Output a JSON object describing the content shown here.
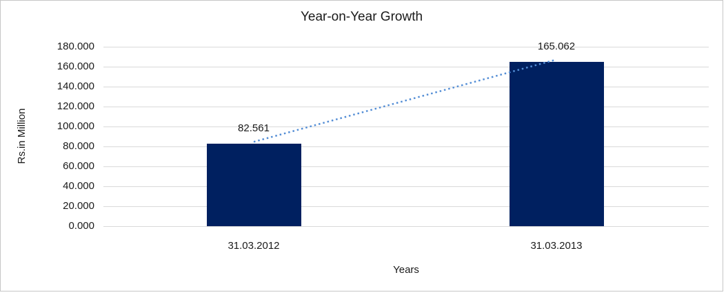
{
  "chart_data": {
    "type": "bar",
    "title": "Year-on-Year Growth",
    "categories": [
      "31.03.2012",
      "31.03.2013"
    ],
    "values": [
      82.561,
      165.062
    ],
    "data_labels": [
      "82.561",
      "165.062"
    ],
    "xlabel": "Years",
    "ylabel": "Rs.in Million",
    "ylim": [
      0,
      180
    ],
    "ytick_step": 20,
    "ytick_decimals": 3,
    "ytick_labels": [
      "0.000",
      "20.000",
      "40.000",
      "60.000",
      "80.000",
      "100.000",
      "120.000",
      "140.000",
      "160.000",
      "180.000"
    ],
    "grid": true,
    "legend": "none",
    "bar_color": "#002060",
    "trendline": {
      "style": "dotted",
      "color": "#538dd5",
      "connects": [
        "31.03.2012",
        "31.03.2013"
      ]
    },
    "gridline_color": "#d9d9d9",
    "frame_border_color": "#c6c6c6",
    "text_color": "#1a1a1a"
  }
}
